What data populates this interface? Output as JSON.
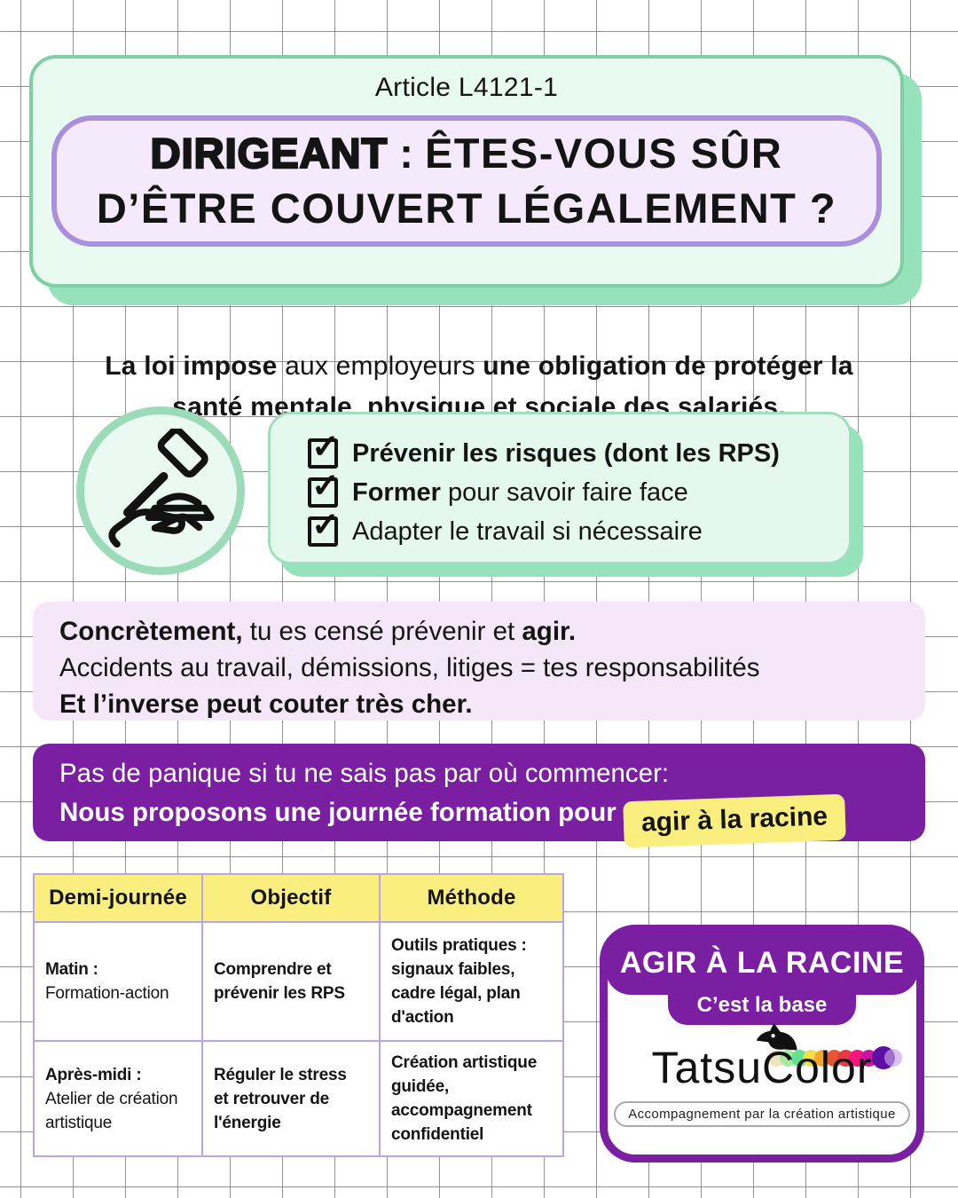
{
  "colors": {
    "mintFill": "#E9FAF1",
    "mintBorder": "#7FCFA4",
    "mintShadow": "#95E2BB",
    "lavFill": "#F5EAFB",
    "lavBorder": "#A98FDC",
    "softPanel": "#F4E7F8",
    "purple": "#7B1FA2",
    "yellow": "#F9EE7E",
    "tableBorder": "#BCA4E3",
    "ink": "#141414"
  },
  "header": {
    "article_label": "Article L4121-1",
    "title_line1": [
      {
        "t": "DIRIGEANT",
        "cls": "ultra"
      },
      {
        "t": " : ",
        "b": true
      },
      {
        "t": "ÊTES-VOUS SÛR",
        "cls": "spaced"
      }
    ],
    "title_line2": [
      {
        "t": "D’ÊTRE COUVERT LÉGALEMENT ?",
        "cls": "spaced"
      }
    ]
  },
  "intro": {
    "segments": [
      {
        "t": "La loi impose",
        "b": true
      },
      {
        "t": " aux employeurs "
      },
      {
        "t": "une obligation de protéger la\nsanté mentale",
        "b": true
      },
      {
        "t": ", "
      },
      {
        "t": "physique et sociale des salariés.",
        "b": true
      }
    ]
  },
  "checklist": {
    "items": [
      {
        "segments": [
          {
            "t": "Prévenir les risques (dont les RPS)",
            "b": true
          }
        ]
      },
      {
        "segments": [
          {
            "t": "Former",
            "b": true
          },
          {
            "t": " pour savoir faire face"
          }
        ]
      },
      {
        "segments": [
          {
            "t": "Adapter le travail si nécessaire"
          }
        ]
      }
    ]
  },
  "concrete": {
    "lines": [
      [
        {
          "t": "Concrètement,",
          "b": true
        },
        {
          "t": " tu es censé prévenir et "
        },
        {
          "t": "agir.",
          "b": true
        }
      ],
      [
        {
          "t": "Accidents au travail, démissions, litiges = tes responsabilités"
        }
      ],
      [
        {
          "t": "Et l’inverse peut couter très cher.",
          "b": true
        }
      ]
    ]
  },
  "cta": {
    "line1": "Pas de panique si tu ne sais pas par où commencer:",
    "line2_prefix": "Nous proposons une journée formation pour",
    "highlight": "agir à la racine"
  },
  "table": {
    "headers": [
      "Demi-journée",
      "Objectif",
      "Méthode"
    ],
    "rows": [
      {
        "cells": [
          {
            "segments": [
              {
                "t": "Matin :",
                "b": true
              },
              {
                "t": "\nFormation-action"
              }
            ]
          },
          {
            "segments": [
              {
                "t": "Comprendre et\nprévenir les RPS",
                "b": true
              }
            ]
          },
          {
            "segments": [
              {
                "t": "Outils pratiques :\nsignaux faibles,\ncadre légal, plan\nd'action",
                "b": true
              }
            ]
          }
        ]
      },
      {
        "cells": [
          {
            "segments": [
              {
                "t": "Après-midi :",
                "b": true
              },
              {
                "t": "\nAtelier de création\nartistique"
              }
            ]
          },
          {
            "segments": [
              {
                "t": "Réguler le stress\net retrouver de\nl'énergie",
                "b": true
              }
            ]
          },
          {
            "segments": [
              {
                "t": "Création artistique\nguidée,\naccompagnement\nconfidentiel",
                "b": true
              }
            ]
          }
        ]
      }
    ]
  },
  "brand": {
    "banner": "AGIR À LA RACINE",
    "tab": "C’est la base",
    "logo_left": "Tatsu",
    "logo_c": "C",
    "logo_right": "olor",
    "tagline": "Accompagnement par la création artistique",
    "dot_colors": [
      "#EDE4BE",
      "#A7E99E",
      "#5FE393",
      "#EFE04A",
      "#F3A52C",
      "#E8542F",
      "#E63946",
      "#F2167D",
      "#C913A1",
      "#5C0FA0",
      "#C3A4E6"
    ]
  }
}
